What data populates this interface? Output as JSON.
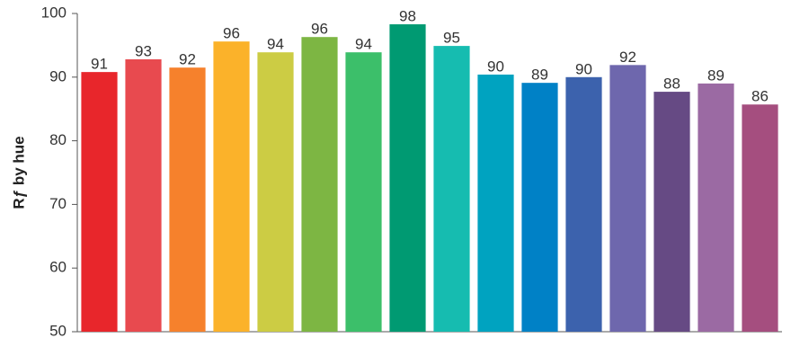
{
  "chart_data": {
    "type": "bar",
    "y_label": "Rƒ by hue",
    "values": [
      90.8,
      92.8,
      91.5,
      95.6,
      93.9,
      96.3,
      93.9,
      98.3,
      94.9,
      90.4,
      89.1,
      90.0,
      91.9,
      87.7,
      89.0,
      85.7
    ],
    "value_labels": [
      "91",
      "93",
      "92",
      "96",
      "94",
      "96",
      "94",
      "98",
      "95",
      "90",
      "89",
      "90",
      "92",
      "88",
      "89",
      "86"
    ],
    "colors": [
      "#e8262b",
      "#e84a4f",
      "#f6812c",
      "#fbb22a",
      "#cccc44",
      "#7db643",
      "#3cbf6a",
      "#009a72",
      "#16bcb0",
      "#00a3c0",
      "#0081c6",
      "#3c62ad",
      "#6e67ad",
      "#664a84",
      "#9b6aa3",
      "#a54e7f"
    ],
    "ylim": [
      50,
      100
    ],
    "yticks": [
      50,
      60,
      70,
      80,
      90,
      100
    ],
    "grid": false
  }
}
